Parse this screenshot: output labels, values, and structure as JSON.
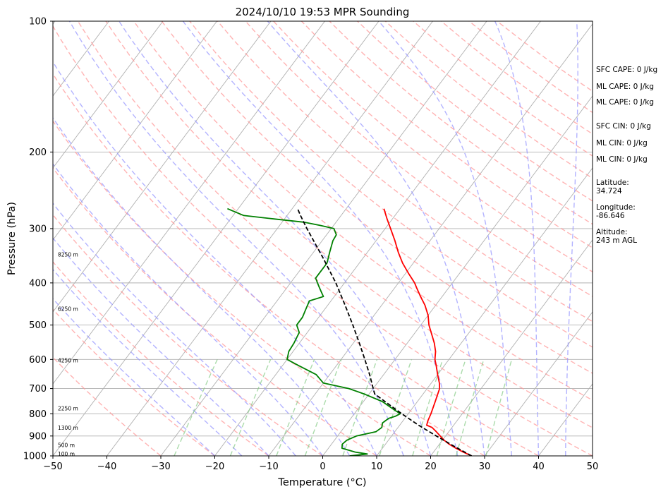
{
  "chart_data": {
    "type": "line",
    "chart_kind": "skew-T log-P sounding",
    "title": "2024/10/10 19:53 MPR Sounding",
    "xlabel": "Temperature (°C)",
    "ylabel": "Pressure (hPa)",
    "xlim": [
      -50,
      50
    ],
    "ylim": [
      1000,
      100
    ],
    "yscale": "log",
    "grid": true,
    "x_ticks": [
      "−50",
      "−40",
      "−30",
      "−20",
      "−10",
      "0",
      "10",
      "20",
      "30",
      "40",
      "50"
    ],
    "y_ticks": [
      "100",
      "200",
      "300",
      "400",
      "500",
      "600",
      "700",
      "800",
      "900",
      "1000"
    ],
    "series": [
      {
        "color": "#ff0000",
        "style": "solid",
        "points": [
          [
            1000,
            27.6
          ],
          [
            980,
            25.5
          ],
          [
            960,
            23.6
          ],
          [
            940,
            21.8
          ],
          [
            920,
            20.3
          ],
          [
            900,
            19.0
          ],
          [
            880,
            17.7
          ],
          [
            860,
            16.3
          ],
          [
            850,
            15.0
          ],
          [
            830,
            14.6
          ],
          [
            800,
            14.2
          ],
          [
            750,
            13.3
          ],
          [
            700,
            12.3
          ],
          [
            680,
            11.5
          ],
          [
            650,
            10.0
          ],
          [
            620,
            8.5
          ],
          [
            600,
            7.4
          ],
          [
            575,
            6.4
          ],
          [
            550,
            5.0
          ],
          [
            525,
            3.3
          ],
          [
            500,
            1.5
          ],
          [
            475,
            0.0
          ],
          [
            450,
            -2.0
          ],
          [
            430,
            -4.0
          ],
          [
            410,
            -6.0
          ],
          [
            400,
            -7.0
          ],
          [
            380,
            -9.5
          ],
          [
            360,
            -12.0
          ],
          [
            340,
            -14.3
          ],
          [
            320,
            -16.5
          ],
          [
            300,
            -19.0
          ],
          [
            285,
            -21.0
          ],
          [
            270,
            -23.0
          ]
        ]
      },
      {
        "color": "#008000",
        "style": "solid",
        "points": [
          [
            1000,
            5.0
          ],
          [
            990,
            8.0
          ],
          [
            980,
            5.5
          ],
          [
            960,
            2.5
          ],
          [
            940,
            2.0
          ],
          [
            920,
            2.3
          ],
          [
            900,
            3.5
          ],
          [
            880,
            6.5
          ],
          [
            860,
            7.0
          ],
          [
            840,
            6.5
          ],
          [
            820,
            7.0
          ],
          [
            810,
            8.0
          ],
          [
            800,
            8.5
          ],
          [
            780,
            6.5
          ],
          [
            750,
            3.5
          ],
          [
            720,
            -1.0
          ],
          [
            700,
            -4.5
          ],
          [
            680,
            -10.0
          ],
          [
            650,
            -12.5
          ],
          [
            620,
            -17.0
          ],
          [
            600,
            -20.0
          ],
          [
            575,
            -20.8
          ],
          [
            550,
            -21.0
          ],
          [
            520,
            -21.5
          ],
          [
            500,
            -23.0
          ],
          [
            480,
            -23.0
          ],
          [
            460,
            -23.5
          ],
          [
            440,
            -24.0
          ],
          [
            430,
            -22.0
          ],
          [
            420,
            -23.0
          ],
          [
            410,
            -24.0
          ],
          [
            400,
            -25.0
          ],
          [
            390,
            -26.0
          ],
          [
            375,
            -26.0
          ],
          [
            360,
            -26.0
          ],
          [
            340,
            -27.0
          ],
          [
            320,
            -28.0
          ],
          [
            310,
            -28.2
          ],
          [
            300,
            -29.5
          ],
          [
            295,
            -32.5
          ],
          [
            290,
            -36.0
          ],
          [
            285,
            -42.0
          ],
          [
            280,
            -48.0
          ],
          [
            275,
            -50.0
          ],
          [
            270,
            -52.0
          ]
        ]
      },
      {
        "color": "#000000",
        "style": "dashed",
        "points": [
          [
            1000,
            27.6
          ],
          [
            950,
            23.0
          ],
          [
            900,
            18.3
          ],
          [
            850,
            13.5
          ],
          [
            800,
            8.8
          ],
          [
            750,
            4.0
          ],
          [
            720,
            1.0
          ],
          [
            700,
            0.0
          ],
          [
            650,
            -2.6
          ],
          [
            600,
            -5.6
          ],
          [
            550,
            -8.9
          ],
          [
            500,
            -12.6
          ],
          [
            450,
            -16.8
          ],
          [
            400,
            -21.6
          ],
          [
            350,
            -27.5
          ],
          [
            300,
            -34.5
          ],
          [
            280,
            -37.5
          ],
          [
            270,
            -39.0
          ]
        ]
      }
    ],
    "height_labels": [
      "100 m",
      "500 m",
      "1300 m",
      "2250 m",
      "4250 m",
      "6250 m",
      "8250 m"
    ],
    "height_label_pressures": [
      992,
      948,
      865,
      780,
      605,
      460,
      345
    ],
    "background_lines": {
      "isotherm_color": "#b0b0b0",
      "dry_adiabat_color": "#ff9999",
      "moist_adiabat_color": "#9999ff",
      "mixing_ratio_color": "#88cc88"
    },
    "indices": [
      "SFC CAPE: 0 J/kg",
      "ML CAPE: 0 J/kg",
      "ML CAPE: 0 J/kg",
      "SFC CIN: 0 J/kg",
      "ML CIN: 0 J/kg",
      "ML CIN: 0 J/kg"
    ],
    "location": {
      "latitude_label": "Latitude:",
      "latitude": "34.724",
      "longitude_label": "Longitude:",
      "longitude": "-86.646",
      "altitude_label": "Altitude:",
      "altitude": "243 m AGL"
    }
  }
}
